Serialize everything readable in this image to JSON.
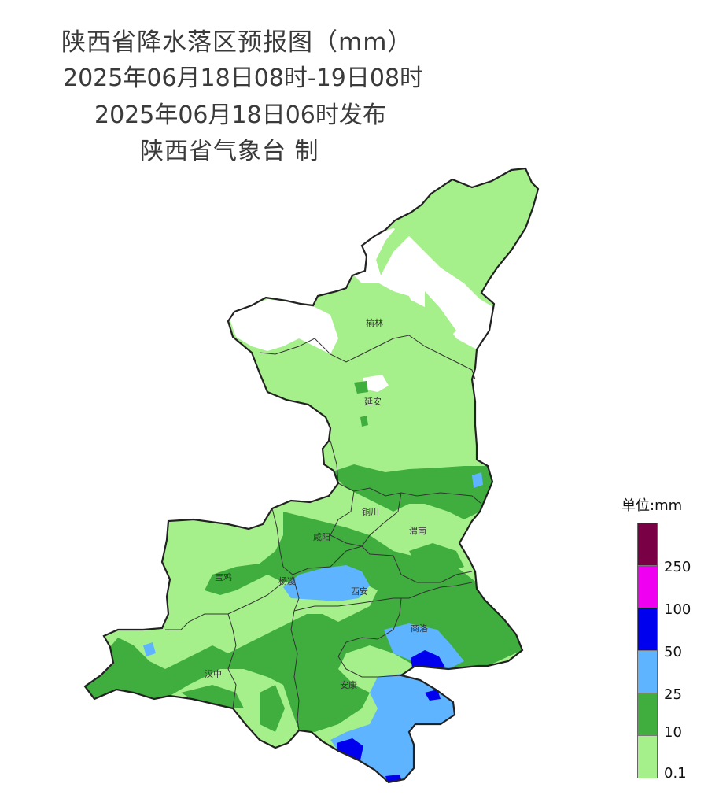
{
  "title": {
    "line1": "陕西省降水落区预报图（mm）",
    "line2": "2025年06月18日08时-19日08时",
    "line3": "2025年06月18日06时发布",
    "line4": "陕西省气象台 制"
  },
  "cities": [
    {
      "id": "yulin",
      "name": "榆林"
    },
    {
      "id": "yanan",
      "name": "延安"
    },
    {
      "id": "tongchuan",
      "name": "铜川"
    },
    {
      "id": "weinan",
      "name": "渭南"
    },
    {
      "id": "xianyang",
      "name": "咸阳"
    },
    {
      "id": "baoji",
      "name": "宝鸡"
    },
    {
      "id": "yangling",
      "name": "杨凌"
    },
    {
      "id": "xian",
      "name": "西安"
    },
    {
      "id": "shangluo",
      "name": "商洛"
    },
    {
      "id": "hanzhong",
      "name": "汉中"
    },
    {
      "id": "ankang",
      "name": "安康"
    }
  ],
  "legend": {
    "unit": "单位:mm",
    "levels": [
      {
        "label": "",
        "color": "#7a0046"
      },
      {
        "label": "250",
        "color": "#f000f0"
      },
      {
        "label": "100",
        "color": "#0000ee"
      },
      {
        "label": "50",
        "color": "#5fb4ff"
      },
      {
        "label": "25",
        "color": "#3fae3f"
      },
      {
        "label": "10",
        "color": "#a6f08c"
      }
    ],
    "bottom_label": "0.1"
  },
  "colors": {
    "no_rain": "#ffffff",
    "light": "#a6f08c",
    "moderate": "#3fae3f",
    "heavy": "#5fb4ff",
    "storm": "#0000ee",
    "border": "#222222"
  }
}
